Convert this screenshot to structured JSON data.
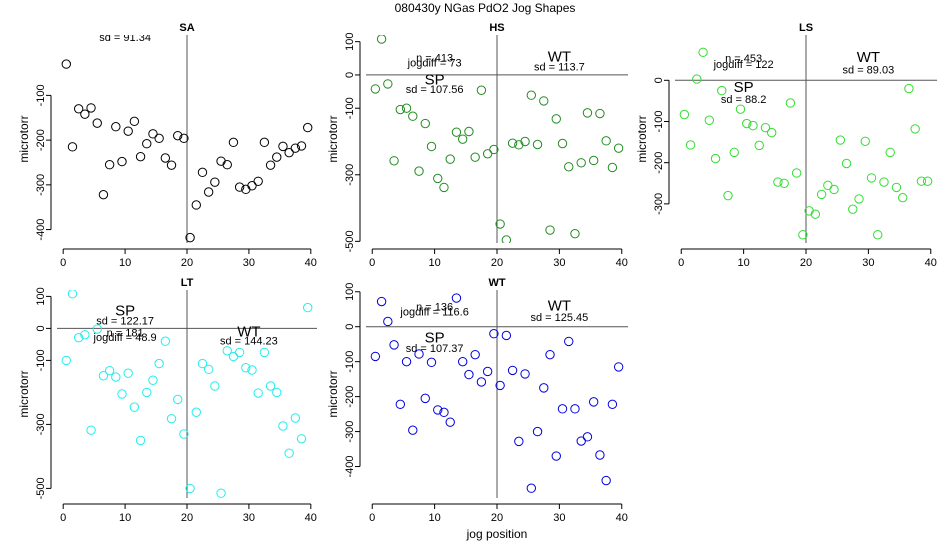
{
  "figure": {
    "title": "080430y   NGas PdO2 Jog Shapes",
    "xlabel": "jog position"
  },
  "chart_data": [
    {
      "type": "scatter",
      "title": "SA",
      "xlabel": "",
      "ylabel": "microtorr",
      "color": "#000000",
      "xlim": [
        -1,
        41
      ],
      "ylim": [
        -430,
        35
      ],
      "xticks": [
        0,
        10,
        20,
        30,
        40
      ],
      "yticks": [
        -400,
        -300,
        -200,
        -100
      ],
      "vline": 20,
      "hline": null,
      "annotations": [
        {
          "text": "sd = 91.34",
          "x": 10,
          "y": 22,
          "size": "small"
        }
      ],
      "x": [
        0.5,
        1.5,
        2.5,
        3.5,
        4.5,
        5.5,
        6.5,
        7.5,
        8.5,
        9.5,
        10.5,
        11.5,
        12.5,
        13.5,
        14.5,
        15.5,
        16.5,
        17.5,
        18.5,
        19.5,
        20.5,
        21.5,
        22.5,
        23.5,
        24.5,
        25.5,
        26.5,
        27.5,
        28.5,
        29.5,
        30.5,
        31.5,
        32.5,
        33.5,
        34.5,
        35.5,
        36.5,
        37.5,
        38.5,
        39.5
      ],
      "y": [
        -30,
        -215,
        -130,
        -142,
        -128,
        -162,
        -322,
        -255,
        -170,
        -248,
        -180,
        -158,
        -237,
        -208,
        -186,
        -196,
        -240,
        -256,
        -190,
        -196,
        -418,
        -345,
        -272,
        -316,
        -294,
        -247,
        -255,
        -205,
        -305,
        -310,
        -302,
        -292,
        -205,
        -256,
        -238,
        -214,
        -228,
        -218,
        -213,
        -172
      ]
    },
    {
      "type": "scatter",
      "title": "HS",
      "xlabel": "",
      "ylabel": "microtorr",
      "color": "#228b22",
      "xlim": [
        -1,
        41
      ],
      "ylim": [
        -505,
        120
      ],
      "xticks": [
        0,
        10,
        20,
        30,
        40
      ],
      "yticks": [
        -500,
        -300,
        -100,
        0,
        100
      ],
      "vline": 20,
      "hline": 0,
      "annotations": [
        {
          "text": "n = 413",
          "x": 10,
          "y": 40,
          "size": "small"
        },
        {
          "text": "jogdiff = 73",
          "x": 10,
          "y": 25,
          "size": "small"
        },
        {
          "text": "SP",
          "x": 10,
          "y": -28,
          "size": "large"
        },
        {
          "text": "sd = 107.56",
          "x": 10,
          "y": -55,
          "size": "small"
        },
        {
          "text": "WT",
          "x": 30,
          "y": 40,
          "size": "large"
        },
        {
          "text": "sd = 113.7",
          "x": 30,
          "y": 13,
          "size": "small"
        }
      ],
      "x": [
        0.5,
        1.5,
        2.5,
        3.5,
        4.5,
        5.5,
        6.5,
        7.5,
        8.5,
        9.5,
        10.5,
        11.5,
        12.5,
        13.5,
        14.5,
        15.5,
        16.5,
        17.5,
        18.5,
        19.5,
        20.5,
        21.5,
        22.5,
        23.5,
        24.5,
        25.5,
        26.5,
        27.5,
        28.5,
        29.5,
        30.5,
        31.5,
        32.5,
        33.5,
        34.5,
        35.5,
        36.5,
        37.5,
        38.5,
        39.5
      ],
      "y": [
        -42,
        108,
        -27,
        -258,
        -104,
        -100,
        -124,
        -289,
        -146,
        -215,
        -311,
        -338,
        -253,
        -172,
        -193,
        -170,
        -247,
        -46,
        -237,
        -224,
        -448,
        -496,
        -205,
        -210,
        -200,
        -61,
        -209,
        -78,
        -466,
        -132,
        -206,
        -276,
        -477,
        -264,
        -114,
        -257,
        -116,
        -198,
        -278,
        -220
      ],
      "series_note": "open circles"
    },
    {
      "type": "scatter",
      "title": "LS",
      "xlabel": "",
      "ylabel": "microtorr",
      "color": "#33dd33",
      "xlim": [
        -1,
        41
      ],
      "ylim": [
        -395,
        110
      ],
      "xticks": [
        0,
        10,
        20,
        30,
        40
      ],
      "yticks": [
        -300,
        -200,
        -100,
        0
      ],
      "vline": 20,
      "hline": 0,
      "annotations": [
        {
          "text": "n = 453",
          "x": 10,
          "y": 45,
          "size": "small"
        },
        {
          "text": "jogdiff = 122",
          "x": 10,
          "y": 30,
          "size": "small"
        },
        {
          "text": "SP",
          "x": 10,
          "y": -28,
          "size": "large"
        },
        {
          "text": "sd = 88.2",
          "x": 10,
          "y": -55,
          "size": "small"
        },
        {
          "text": "WT",
          "x": 30,
          "y": 45,
          "size": "large"
        },
        {
          "text": "sd = 89.03",
          "x": 30,
          "y": 17,
          "size": "small"
        }
      ],
      "x": [
        0.5,
        1.5,
        2.5,
        3.5,
        4.5,
        5.5,
        6.5,
        7.5,
        8.5,
        9.5,
        10.5,
        11.5,
        12.5,
        13.5,
        14.5,
        15.5,
        16.5,
        17.5,
        18.5,
        19.5,
        20.5,
        21.5,
        22.5,
        23.5,
        24.5,
        25.5,
        26.5,
        27.5,
        28.5,
        29.5,
        30.5,
        31.5,
        32.5,
        33.5,
        34.5,
        35.5,
        36.5,
        37.5,
        38.5,
        39.5
      ],
      "y": [
        -83,
        -157,
        3,
        68,
        -97,
        -190,
        -25,
        -280,
        -175,
        -70,
        -105,
        -110,
        -158,
        -115,
        -127,
        -247,
        -250,
        -55,
        -225,
        -375,
        -317,
        -325,
        -277,
        -255,
        -265,
        -145,
        -202,
        -313,
        -288,
        -148,
        -237,
        -375,
        -247,
        -175,
        -260,
        -285,
        -20,
        -118,
        -245,
        -245
      ]
    },
    {
      "type": "scatter",
      "title": "LT",
      "xlabel": "",
      "ylabel": "microtorr",
      "color": "#22eeee",
      "xlim": [
        -1,
        41
      ],
      "ylim": [
        -530,
        120
      ],
      "xticks": [
        0,
        10,
        20,
        30,
        40
      ],
      "yticks": [
        -500,
        -300,
        -100,
        0,
        100
      ],
      "vline": 20,
      "hline": 0,
      "annotations": [
        {
          "text": "SP",
          "x": 10,
          "y": 40,
          "size": "large"
        },
        {
          "text": "sd = 122.17",
          "x": 10,
          "y": 12,
          "size": "small"
        },
        {
          "text": "n = 181",
          "x": 10,
          "y": -25,
          "size": "small"
        },
        {
          "text": "jogdiff = 48.9",
          "x": 10,
          "y": -40,
          "size": "small"
        },
        {
          "text": "WT",
          "x": 30,
          "y": -25,
          "size": "large"
        },
        {
          "text": "sd = 144.23",
          "x": 30,
          "y": -50,
          "size": "small"
        }
      ],
      "x": [
        0.5,
        1.5,
        2.5,
        3.5,
        4.5,
        5.5,
        6.5,
        7.5,
        8.5,
        9.5,
        10.5,
        11.5,
        12.5,
        13.5,
        14.5,
        15.5,
        16.5,
        17.5,
        18.5,
        19.5,
        20.5,
        21.5,
        22.5,
        23.5,
        24.5,
        25.5,
        26.5,
        27.5,
        28.5,
        29.5,
        30.5,
        31.5,
        32.5,
        33.5,
        34.5,
        35.5,
        36.5,
        37.5,
        38.5,
        39.5
      ],
      "y": [
        -100,
        108,
        -29,
        -20,
        -318,
        -2,
        -148,
        -132,
        -152,
        -205,
        -140,
        -246,
        -350,
        -200,
        -162,
        -110,
        -40,
        -282,
        -222,
        -330,
        -500,
        -262,
        -110,
        -128,
        -180,
        -515,
        -70,
        -88,
        -75,
        -123,
        -130,
        -202,
        -75,
        -180,
        -200,
        -305,
        -390,
        -280,
        -345,
        65
      ]
    },
    {
      "type": "scatter",
      "title": "WT",
      "xlabel": "jog position",
      "ylabel": "microtorr",
      "color": "#0000dd",
      "xlim": [
        -1,
        41
      ],
      "ylim": [
        -490,
        105
      ],
      "xticks": [
        0,
        10,
        20,
        30,
        40
      ],
      "yticks": [
        -400,
        -300,
        -200,
        -100,
        0,
        100
      ],
      "vline": 20,
      "hline": 0,
      "annotations": [
        {
          "text": "n = 136",
          "x": 10,
          "y": 47,
          "size": "small"
        },
        {
          "text": "jogdiff = 116.6",
          "x": 10,
          "y": 32,
          "size": "small"
        },
        {
          "text": "SP",
          "x": 10,
          "y": -45,
          "size": "large"
        },
        {
          "text": "sd = 107.37",
          "x": 10,
          "y": -72,
          "size": "small"
        },
        {
          "text": "WT",
          "x": 30,
          "y": 47,
          "size": "large"
        },
        {
          "text": "sd = 125.45",
          "x": 30,
          "y": 17,
          "size": "small"
        }
      ],
      "x": [
        0.5,
        1.5,
        2.5,
        3.5,
        4.5,
        5.5,
        6.5,
        7.5,
        8.5,
        9.5,
        10.5,
        11.5,
        12.5,
        13.5,
        14.5,
        15.5,
        16.5,
        17.5,
        18.5,
        19.5,
        20.5,
        21.5,
        22.5,
        23.5,
        24.5,
        25.5,
        26.5,
        27.5,
        28.5,
        29.5,
        30.5,
        31.5,
        32.5,
        33.5,
        34.5,
        35.5,
        36.5,
        37.5,
        38.5,
        39.5
      ],
      "y": [
        -85,
        72,
        15,
        -52,
        -222,
        -100,
        -296,
        -78,
        -205,
        -102,
        -238,
        -245,
        -273,
        82,
        -100,
        -137,
        -80,
        -158,
        -128,
        -20,
        -168,
        -25,
        -125,
        -328,
        -135,
        -462,
        -300,
        -175,
        -80,
        -370,
        -235,
        -42,
        -235,
        -327,
        -315,
        -215,
        -367,
        -440,
        -222,
        -115
      ]
    }
  ]
}
